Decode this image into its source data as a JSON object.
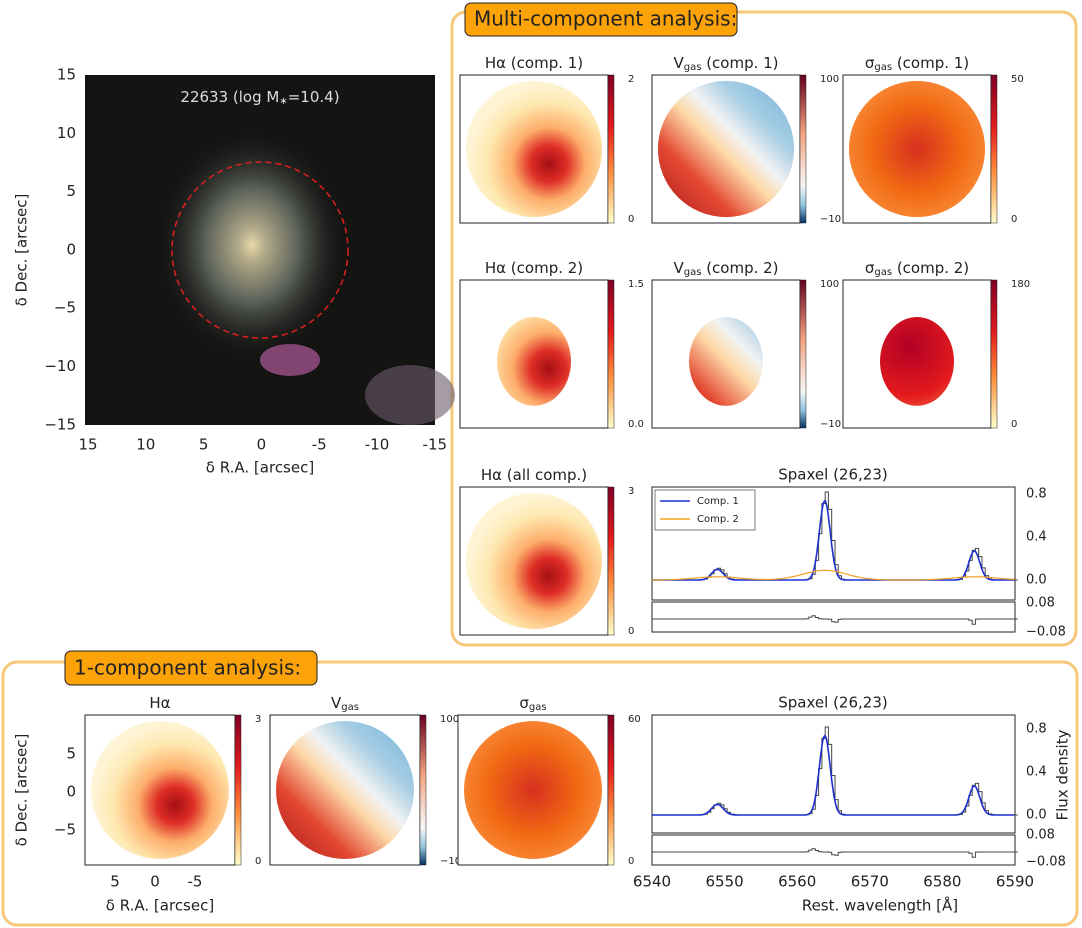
{
  "image_panel": {
    "title": {
      "main": "22633 (log M",
      "sub": "∗",
      "rest": "=10.4)"
    },
    "y_label": "δ Dec. [arcsec]",
    "x_label": "δ R.A. [arcsec]",
    "y_ticks": [
      "15",
      "10",
      "5",
      "0",
      "−5",
      "−10",
      "−15"
    ],
    "x_ticks": [
      "15",
      "10",
      "5",
      "0",
      "-5",
      "-10",
      "-15"
    ]
  },
  "multi": {
    "heading": "Multi-component analysis:",
    "maps": [
      {
        "title": {
          "main": "Hα",
          "rest": " (comp. 1)"
        },
        "cbar_max": "2",
        "cbar_min": "0"
      },
      {
        "title": {
          "main": "V",
          "sub": "gas",
          "rest": " (comp. 1)"
        },
        "cbar_max": "100",
        "cbar_min": "−10"
      },
      {
        "title": {
          "main": "σ",
          "sub": "gas",
          "rest": " (comp. 1)"
        },
        "cbar_max": "50",
        "cbar_min": "0"
      },
      {
        "title": {
          "main": "Hα",
          "rest": " (comp. 2)"
        },
        "cbar_max": "1.5",
        "cbar_min": "0.0"
      },
      {
        "title": {
          "main": "V",
          "sub": "gas",
          "rest": " (comp. 2)"
        },
        "cbar_max": "100",
        "cbar_min": "−10"
      },
      {
        "title": {
          "main": "σ",
          "sub": "gas",
          "rest": " (comp. 2)"
        },
        "cbar_max": "180",
        "cbar_min": "0"
      },
      {
        "title": {
          "main": "Hα",
          "rest": " (all comp.)"
        },
        "cbar_max": "3",
        "cbar_min": "0"
      }
    ],
    "spectrum": {
      "title": "Spaxel (26,23)",
      "legend": [
        "Comp. 1",
        "Comp. 2"
      ],
      "y_ticks": [
        "0.8",
        "0.4",
        "0.0"
      ],
      "resid_ticks": [
        "0.08",
        "−0.08"
      ]
    }
  },
  "single": {
    "heading": "1-component analysis:",
    "maps": [
      {
        "title": {
          "main": "Hα"
        },
        "cbar_max": "3",
        "cbar_min": "0"
      },
      {
        "title": {
          "main": "V",
          "sub": "gas"
        },
        "cbar_max": "100",
        "cbar_min": "−10"
      },
      {
        "title": {
          "main": "σ",
          "sub": "gas"
        },
        "cbar_max": "60",
        "cbar_min": "0"
      }
    ],
    "y_label": "δ Dec. [arcsec]",
    "x_label": "δ R.A. [arcsec]",
    "y_ticks": [
      "5",
      "0",
      "−5"
    ],
    "x_ticks": [
      "5",
      "0",
      "-5"
    ],
    "spectrum": {
      "title": "Spaxel (26,23)",
      "y_ticks": [
        "0.8",
        "0.4",
        "0.0"
      ],
      "resid_ticks": [
        "0.08",
        "−0.08"
      ],
      "x_ticks": [
        "6540",
        "6550",
        "6560",
        "6570",
        "6580",
        "6590"
      ],
      "x_label": "Rest. wavelength [Å]",
      "y_label": "Flux density"
    }
  }
}
